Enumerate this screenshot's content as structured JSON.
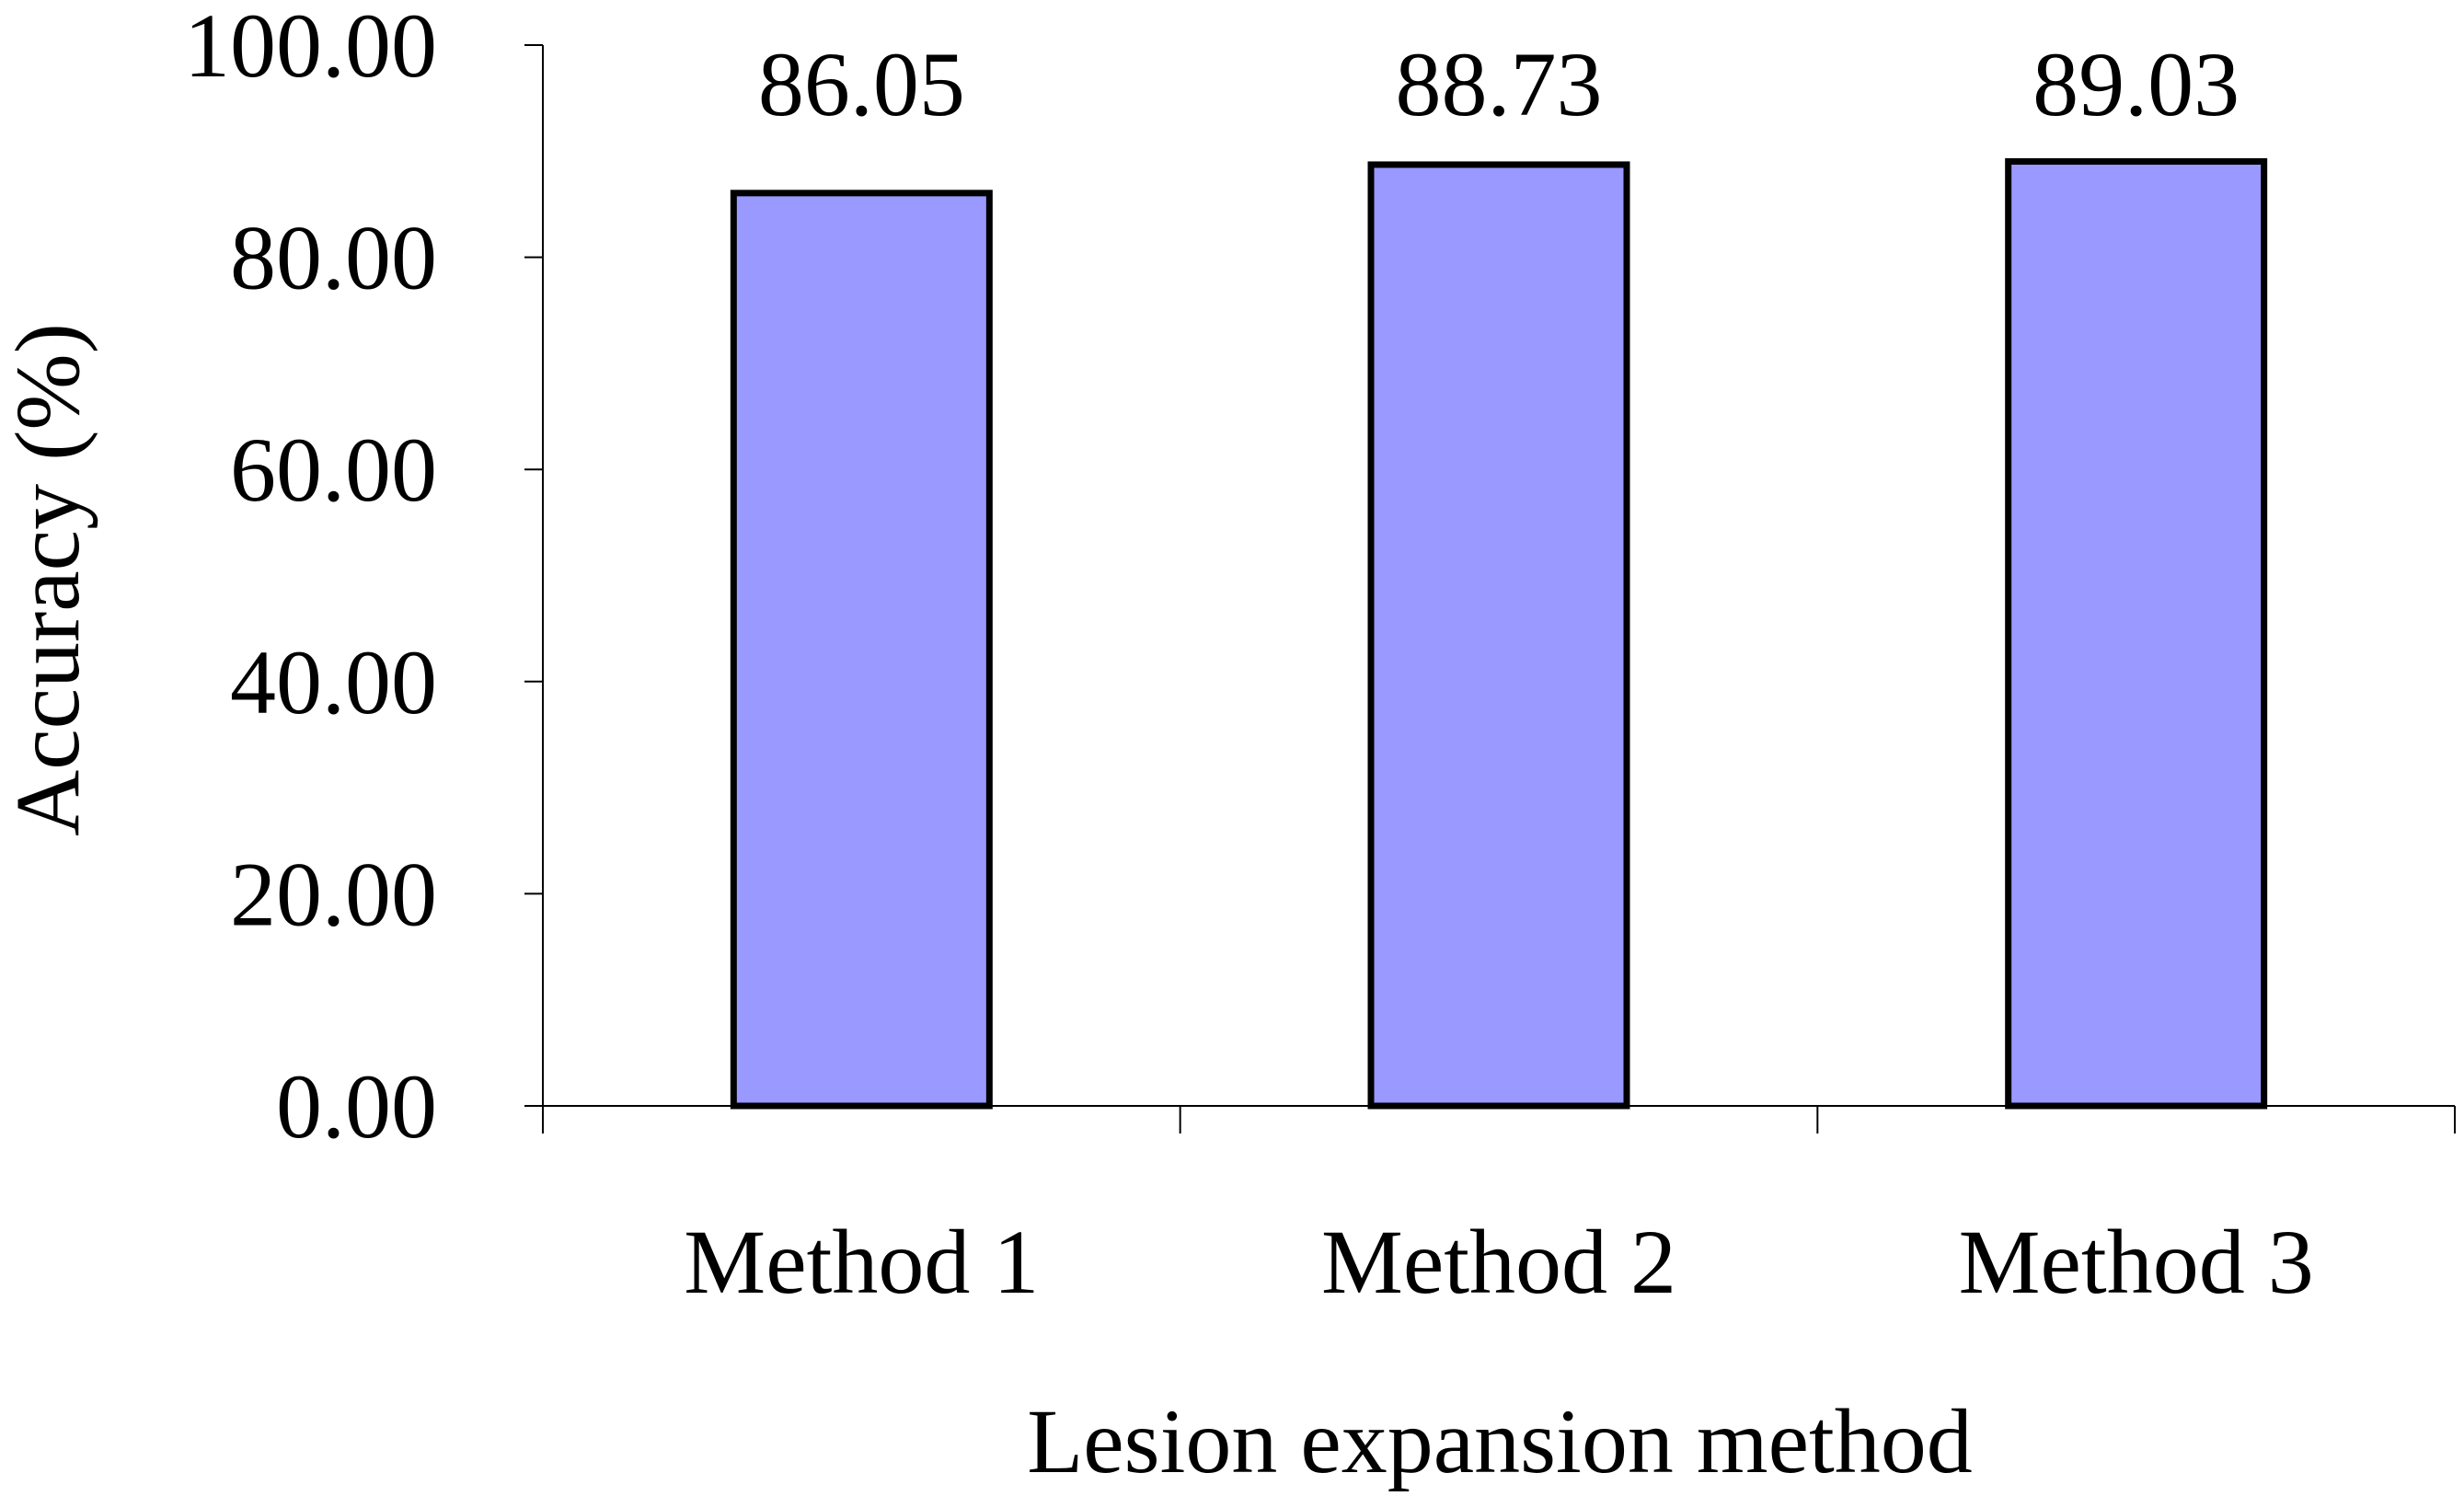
{
  "chart_data": {
    "type": "bar",
    "categories": [
      "Method 1",
      "Method 2",
      "Method 3"
    ],
    "values": [
      86.05,
      88.73,
      89.03
    ],
    "data_labels": [
      "86.05",
      "88.73",
      "89.03"
    ],
    "title": "",
    "xlabel": "Lesion expansion method",
    "ylabel": "Accuracy (%)",
    "ylim": [
      0,
      100
    ],
    "yticks": [
      0,
      20,
      40,
      60,
      80,
      100
    ],
    "ytick_labels": [
      "0.00",
      "20.00",
      "40.00",
      "60.00",
      "80.00",
      "100.00"
    ],
    "grid": false,
    "legend": "none",
    "colors": {
      "bar_fill": "#9999ff",
      "bar_stroke": "#000000",
      "axis": "#000000"
    }
  }
}
